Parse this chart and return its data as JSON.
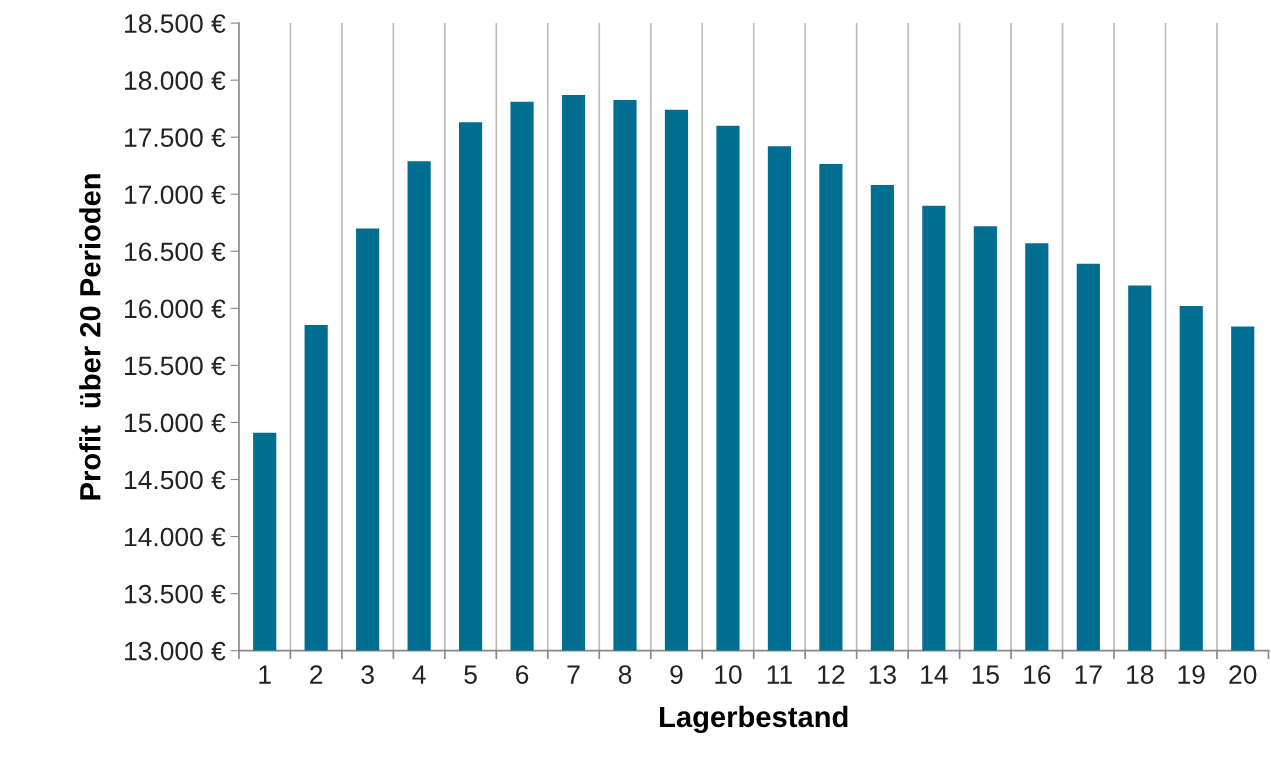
{
  "chart_data": {
    "type": "bar",
    "xlabel": "Lagerbestand",
    "ylabel": "Profit  über 20 Perioden",
    "categories": [
      "1",
      "2",
      "3",
      "4",
      "5",
      "6",
      "7",
      "8",
      "9",
      "10",
      "11",
      "12",
      "13",
      "14",
      "15",
      "16",
      "17",
      "18",
      "19",
      "20"
    ],
    "values": [
      14910,
      15855,
      16700,
      17290,
      17630,
      17810,
      17870,
      17825,
      17740,
      17600,
      17420,
      17265,
      17080,
      16900,
      16720,
      16570,
      16390,
      16200,
      16020,
      15840
    ],
    "color": "#006e91",
    "ylim": [
      13000,
      18500
    ],
    "yticks": [
      {
        "value": 13000,
        "label": "13.000 €"
      },
      {
        "value": 13500,
        "label": "13.500 €"
      },
      {
        "value": 14000,
        "label": "14.000 €"
      },
      {
        "value": 14500,
        "label": "14.500 €"
      },
      {
        "value": 15000,
        "label": "15.000 €"
      },
      {
        "value": 15500,
        "label": "15.500 €"
      },
      {
        "value": 16000,
        "label": "16.000 €"
      },
      {
        "value": 16500,
        "label": "16.500 €"
      },
      {
        "value": 17000,
        "label": "17.000 €"
      },
      {
        "value": 17500,
        "label": "17.500 €"
      },
      {
        "value": 18000,
        "label": "18.000 €"
      },
      {
        "value": 18500,
        "label": "18.500 €"
      }
    ],
    "grid": "x"
  }
}
